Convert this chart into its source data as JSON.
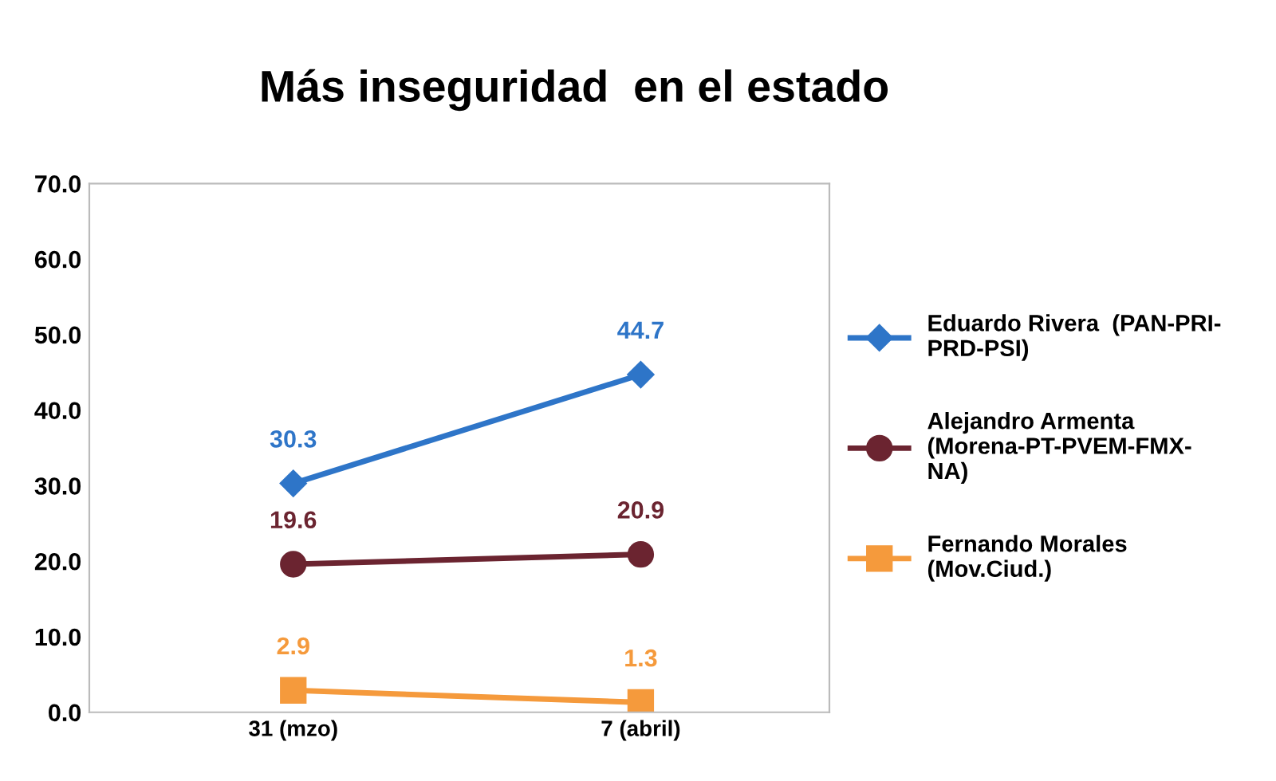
{
  "chart_data": {
    "type": "line",
    "title": "Más inseguridad  en el estado",
    "categories": [
      "31 (mzo)",
      "7 (abril)"
    ],
    "series": [
      {
        "name": "Eduardo Rivera  (PAN-PRI-\nPRD-PSI)",
        "color": "#2e75c8",
        "values": [
          30.3,
          44.7
        ],
        "marker": "diamond"
      },
      {
        "name": "Alejandro Armenta\n(Morena-PT-PVEM-FMX-\nNA)",
        "color": "#6b2430",
        "values": [
          19.6,
          20.9
        ],
        "marker": "circle"
      },
      {
        "name": "Fernando Morales\n(Mov.Ciud.)",
        "color": "#f59a3c",
        "values": [
          2.9,
          1.3
        ],
        "marker": "square"
      }
    ],
    "ylim": [
      0,
      70
    ],
    "yticks": [
      {
        "value": 0,
        "label": "0.0"
      },
      {
        "value": 10,
        "label": "10.0"
      },
      {
        "value": 20,
        "label": "20.0"
      },
      {
        "value": 30,
        "label": "30.0"
      },
      {
        "value": 40,
        "label": "40.0"
      },
      {
        "value": 50,
        "label": "50.0"
      },
      {
        "value": 60,
        "label": "60.0"
      },
      {
        "value": 70,
        "label": "70.0"
      }
    ],
    "data_labels": true,
    "grid": false,
    "legend": "right",
    "line_style": "solid"
  }
}
